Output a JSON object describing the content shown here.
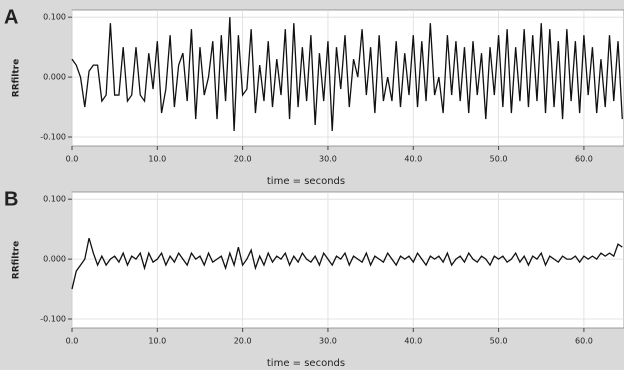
{
  "chart_data": [
    {
      "type": "line",
      "panel_label": "A",
      "ylabel": "RRfiltre",
      "xlabel": "time = seconds",
      "xlim": [
        0,
        64.7
      ],
      "ylim": [
        -0.115,
        0.112
      ],
      "grid": true,
      "color": "#111111",
      "xticks": [
        {
          "value": 0,
          "label": "0.0"
        },
        {
          "value": 10,
          "label": "10.0"
        },
        {
          "value": 20,
          "label": "20.0"
        },
        {
          "value": 30,
          "label": "30.0"
        },
        {
          "value": 40,
          "label": "40.0"
        },
        {
          "value": 50,
          "label": "50.0"
        },
        {
          "value": 60,
          "label": "60.0"
        }
      ],
      "yticks": [
        {
          "value": -0.1,
          "label": "-0.100"
        },
        {
          "value": 0,
          "label": "0.000"
        },
        {
          "value": 0.1,
          "label": "0.100"
        }
      ],
      "x": [
        0,
        0.5,
        1,
        1.5,
        2,
        2.5,
        3,
        3.5,
        4,
        4.5,
        5,
        5.5,
        6,
        6.5,
        7,
        7.5,
        8,
        8.5,
        9,
        9.5,
        10,
        10.5,
        11,
        11.5,
        12,
        12.5,
        13,
        13.5,
        14,
        14.5,
        15,
        15.5,
        16,
        16.5,
        17,
        17.5,
        18,
        18.5,
        19,
        19.5,
        20,
        20.5,
        21,
        21.5,
        22,
        22.5,
        23,
        23.5,
        24,
        24.5,
        25,
        25.5,
        26,
        26.5,
        27,
        27.5,
        28,
        28.5,
        29,
        29.5,
        30,
        30.5,
        31,
        31.5,
        32,
        32.5,
        33,
        33.5,
        34,
        34.5,
        35,
        35.5,
        36,
        36.5,
        37,
        37.5,
        38,
        38.5,
        39,
        39.5,
        40,
        40.5,
        41,
        41.5,
        42,
        42.5,
        43,
        43.5,
        44,
        44.5,
        45,
        45.5,
        46,
        46.5,
        47,
        47.5,
        48,
        48.5,
        49,
        49.5,
        50,
        50.5,
        51,
        51.5,
        52,
        52.5,
        53,
        53.5,
        54,
        54.5,
        55,
        55.5,
        56,
        56.5,
        57,
        57.5,
        58,
        58.5,
        59,
        59.5,
        60,
        60.5,
        61,
        61.5,
        62,
        62.5,
        63,
        63.5,
        64,
        64.5
      ],
      "values": [
        0.03,
        0.02,
        0.0,
        -0.05,
        0.01,
        0.02,
        0.02,
        -0.04,
        -0.03,
        0.09,
        -0.03,
        -0.03,
        0.05,
        -0.04,
        -0.03,
        0.05,
        -0.03,
        -0.04,
        0.04,
        -0.02,
        0.06,
        -0.06,
        -0.02,
        0.07,
        -0.05,
        0.02,
        0.04,
        -0.04,
        0.08,
        -0.07,
        0.05,
        -0.03,
        0.0,
        0.06,
        -0.07,
        0.07,
        -0.04,
        0.1,
        -0.09,
        0.07,
        -0.03,
        -0.02,
        0.08,
        -0.06,
        0.02,
        -0.04,
        0.06,
        -0.05,
        0.03,
        -0.03,
        0.08,
        -0.07,
        0.09,
        -0.05,
        0.05,
        -0.04,
        0.07,
        -0.08,
        0.04,
        -0.04,
        0.06,
        -0.09,
        0.05,
        -0.02,
        0.07,
        -0.05,
        0.03,
        0.0,
        0.08,
        -0.03,
        0.05,
        -0.06,
        0.07,
        -0.04,
        0.0,
        -0.04,
        0.06,
        -0.05,
        0.04,
        -0.03,
        0.07,
        -0.05,
        0.06,
        -0.04,
        0.09,
        -0.03,
        0.0,
        -0.06,
        0.07,
        -0.03,
        0.06,
        -0.04,
        0.05,
        -0.06,
        0.06,
        -0.03,
        0.04,
        -0.07,
        0.05,
        -0.03,
        0.07,
        -0.05,
        0.08,
        -0.06,
        0.05,
        -0.04,
        0.08,
        -0.05,
        0.07,
        -0.04,
        0.09,
        -0.06,
        0.08,
        -0.05,
        0.06,
        -0.07,
        0.08,
        -0.04,
        0.06,
        -0.06,
        0.07,
        -0.03,
        0.05,
        -0.06,
        0.03,
        -0.05,
        0.07,
        -0.04,
        0.06,
        -0.07
      ]
    },
    {
      "type": "line",
      "panel_label": "B",
      "ylabel": "RRfiltre",
      "xlabel": "time = seconds",
      "xlim": [
        0,
        64.7
      ],
      "ylim": [
        -0.115,
        0.112
      ],
      "grid": true,
      "color": "#111111",
      "xticks": [
        {
          "value": 0,
          "label": "0.0"
        },
        {
          "value": 10,
          "label": "10.0"
        },
        {
          "value": 20,
          "label": "20.0"
        },
        {
          "value": 30,
          "label": "30.0"
        },
        {
          "value": 40,
          "label": "40.0"
        },
        {
          "value": 50,
          "label": "50.0"
        },
        {
          "value": 60,
          "label": "60.0"
        }
      ],
      "yticks": [
        {
          "value": -0.1,
          "label": "-0.100"
        },
        {
          "value": 0,
          "label": "0.000"
        },
        {
          "value": 0.1,
          "label": "0.100"
        }
      ],
      "x": [
        0,
        0.5,
        1,
        1.5,
        2,
        2.5,
        3,
        3.5,
        4,
        4.5,
        5,
        5.5,
        6,
        6.5,
        7,
        7.5,
        8,
        8.5,
        9,
        9.5,
        10,
        10.5,
        11,
        11.5,
        12,
        12.5,
        13,
        13.5,
        14,
        14.5,
        15,
        15.5,
        16,
        16.5,
        17,
        17.5,
        18,
        18.5,
        19,
        19.5,
        20,
        20.5,
        21,
        21.5,
        22,
        22.5,
        23,
        23.5,
        24,
        24.5,
        25,
        25.5,
        26,
        26.5,
        27,
        27.5,
        28,
        28.5,
        29,
        29.5,
        30,
        30.5,
        31,
        31.5,
        32,
        32.5,
        33,
        33.5,
        34,
        34.5,
        35,
        35.5,
        36,
        36.5,
        37,
        37.5,
        38,
        38.5,
        39,
        39.5,
        40,
        40.5,
        41,
        41.5,
        42,
        42.5,
        43,
        43.5,
        44,
        44.5,
        45,
        45.5,
        46,
        46.5,
        47,
        47.5,
        48,
        48.5,
        49,
        49.5,
        50,
        50.5,
        51,
        51.5,
        52,
        52.5,
        53,
        53.5,
        54,
        54.5,
        55,
        55.5,
        56,
        56.5,
        57,
        57.5,
        58,
        58.5,
        59,
        59.5,
        60,
        60.5,
        61,
        61.5,
        62,
        62.5,
        63,
        63.5,
        64,
        64.5
      ],
      "values": [
        -0.05,
        -0.02,
        -0.01,
        0.0,
        0.035,
        0.01,
        -0.01,
        0.005,
        -0.01,
        0.0,
        0.005,
        -0.005,
        0.01,
        -0.01,
        0.005,
        0.0,
        0.01,
        -0.015,
        0.01,
        -0.005,
        0.0,
        0.01,
        -0.01,
        0.005,
        -0.005,
        0.01,
        0.0,
        -0.01,
        0.01,
        0.0,
        0.005,
        -0.01,
        0.01,
        -0.005,
        0.0,
        0.005,
        -0.015,
        0.01,
        -0.01,
        0.02,
        -0.01,
        0.0,
        0.015,
        -0.015,
        0.005,
        -0.01,
        0.01,
        -0.005,
        0.005,
        0.0,
        0.01,
        -0.01,
        0.005,
        -0.005,
        0.01,
        0.0,
        -0.005,
        0.005,
        -0.01,
        0.01,
        0.0,
        -0.01,
        0.005,
        0.0,
        0.01,
        -0.01,
        0.005,
        0.0,
        -0.005,
        0.01,
        -0.01,
        0.005,
        0.0,
        -0.005,
        0.01,
        0.0,
        -0.01,
        0.005,
        0.0,
        0.005,
        -0.005,
        0.01,
        0.0,
        -0.01,
        0.005,
        0.0,
        0.005,
        -0.005,
        0.01,
        -0.01,
        0.0,
        0.005,
        -0.005,
        0.01,
        0.0,
        -0.005,
        0.005,
        0.0,
        -0.01,
        0.005,
        0.0,
        0.005,
        -0.005,
        0.0,
        0.01,
        -0.005,
        0.005,
        -0.01,
        0.005,
        0.0,
        0.01,
        -0.01,
        0.005,
        0.0,
        -0.005,
        0.005,
        0.0,
        0.0,
        0.005,
        -0.005,
        0.005,
        0.0,
        0.005,
        0.0,
        0.01,
        0.005,
        0.01,
        0.005,
        0.025,
        0.02
      ]
    }
  ]
}
